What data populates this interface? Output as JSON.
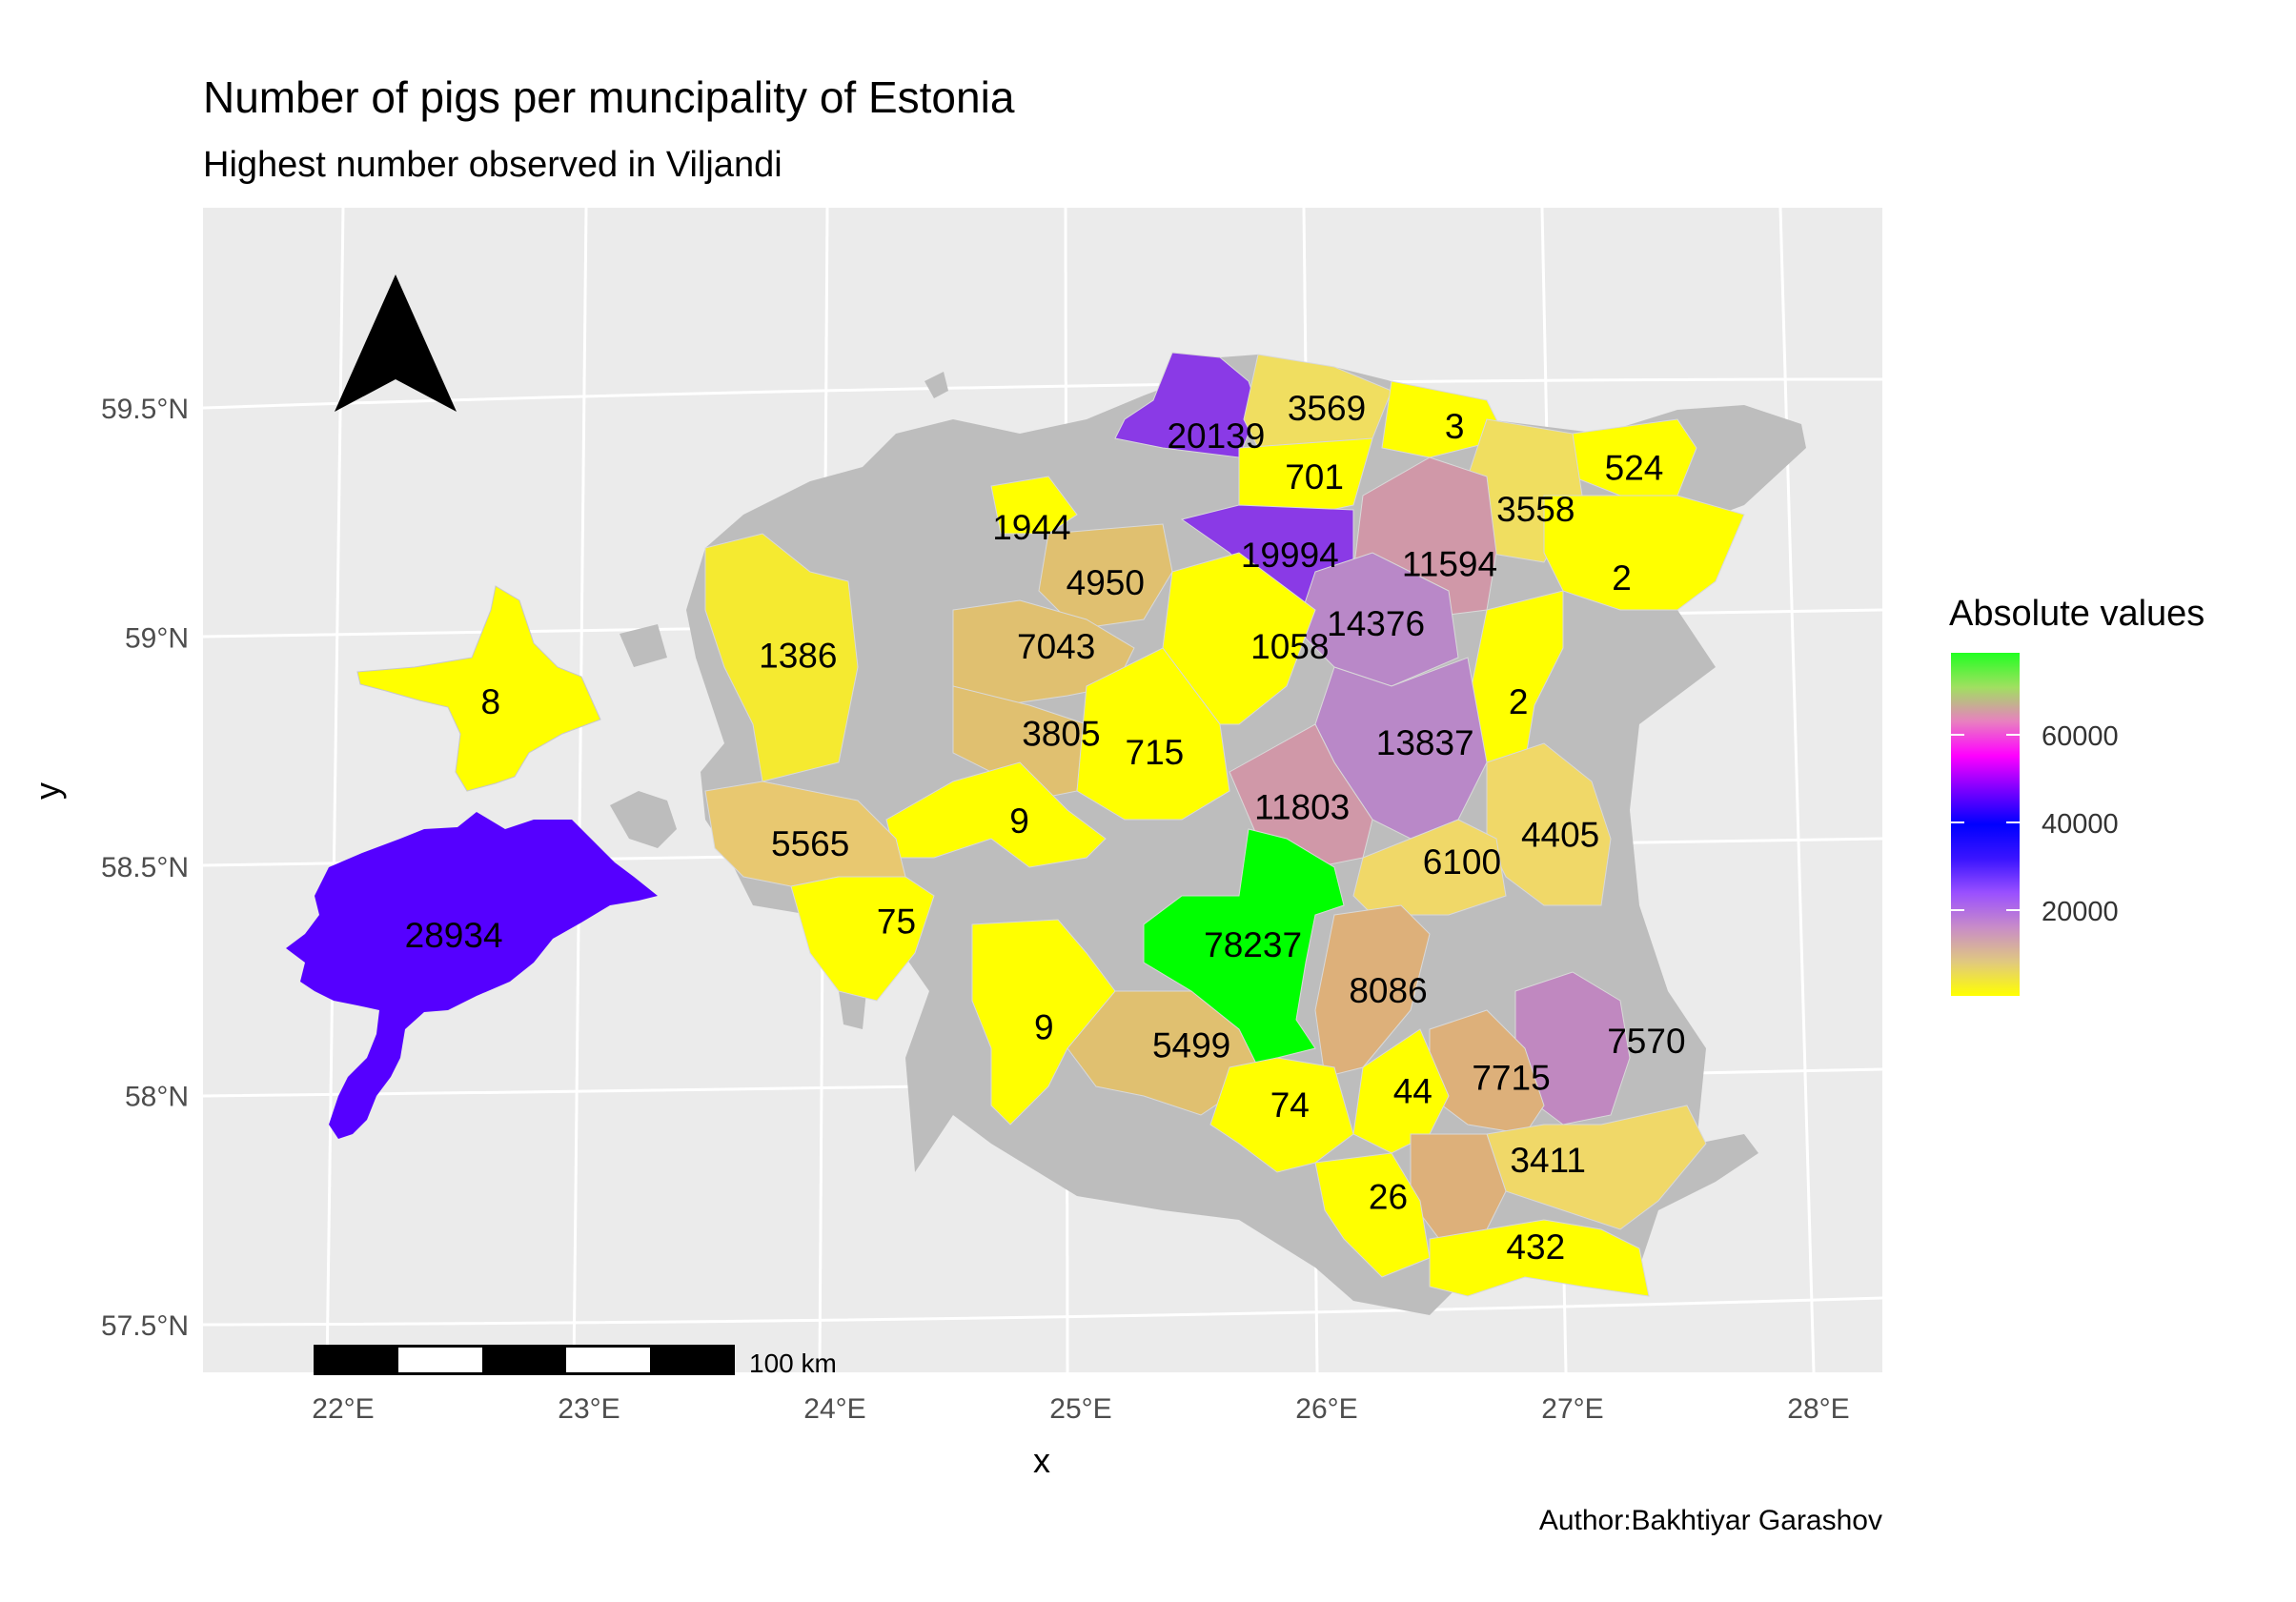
{
  "title": "Number of pigs per muncipality of Estonia",
  "subtitle": "Highest number observed in Viljandi",
  "caption": "Author:Bakhtiyar Garashov",
  "x_axis": {
    "title": "x",
    "ticks": [
      "22°E",
      "23°E",
      "24°E",
      "25°E",
      "26°E",
      "27°E",
      "28°E"
    ]
  },
  "y_axis": {
    "title": "y",
    "ticks": [
      "59.5°N",
      "59°N",
      "58.5°N",
      "58°N",
      "57.5°N"
    ]
  },
  "legend": {
    "title": "Absolute values",
    "ticks": [
      "60000",
      "40000",
      "20000"
    ],
    "gradient": [
      "#ffff00",
      "#e0c880",
      "#c88cc8",
      "#9a50ff",
      "#3a14ff",
      "#0000ff",
      "#7a00ff",
      "#ff00ff",
      "#e880c0",
      "#a0e060",
      "#22ff22"
    ]
  },
  "scale_bar": {
    "label": "100 km"
  },
  "north_arrow": "north-arrow-icon",
  "colors": {
    "panel_bg": "#ebebeb",
    "grid": "#ffffff",
    "na_fill": "#bdbdbd",
    "yellow": "#ffff00",
    "green": "#00ff00",
    "saaremaa": "#5500ff",
    "purple": "#9244e0"
  },
  "chart_data": {
    "type": "choropleth",
    "fill_variable": "Absolute values",
    "labels": [
      {
        "value": "20139",
        "lon": 25.55,
        "lat": 59.44
      },
      {
        "value": "3569",
        "lon": 26.0,
        "lat": 59.5
      },
      {
        "value": "3",
        "lon": 26.52,
        "lat": 59.46
      },
      {
        "value": "524",
        "lon": 27.25,
        "lat": 59.37
      },
      {
        "value": "701",
        "lon": 25.95,
        "lat": 59.35
      },
      {
        "value": "3558",
        "lon": 26.85,
        "lat": 59.28
      },
      {
        "value": "1944",
        "lon": 24.8,
        "lat": 59.24
      },
      {
        "value": "19994",
        "lon": 25.85,
        "lat": 59.18
      },
      {
        "value": "11594",
        "lon": 26.5,
        "lat": 59.16
      },
      {
        "value": "2",
        "lon": 27.2,
        "lat": 59.13
      },
      {
        "value": "4950",
        "lon": 25.1,
        "lat": 59.12
      },
      {
        "value": "14376",
        "lon": 26.2,
        "lat": 59.03
      },
      {
        "value": "1386",
        "lon": 23.85,
        "lat": 58.96
      },
      {
        "value": "8",
        "lon": 22.6,
        "lat": 58.86
      },
      {
        "value": "7043",
        "lon": 24.9,
        "lat": 58.98
      },
      {
        "value": "1058",
        "lon": 25.85,
        "lat": 58.98
      },
      {
        "value": "2",
        "lon": 26.78,
        "lat": 58.86
      },
      {
        "value": "3805",
        "lon": 24.92,
        "lat": 58.79
      },
      {
        "value": "715",
        "lon": 25.3,
        "lat": 58.75
      },
      {
        "value": "13837",
        "lon": 26.4,
        "lat": 58.77
      },
      {
        "value": "11803",
        "lon": 25.9,
        "lat": 58.63
      },
      {
        "value": "9",
        "lon": 24.75,
        "lat": 58.6
      },
      {
        "value": "5565",
        "lon": 23.9,
        "lat": 58.55
      },
      {
        "value": "4405",
        "lon": 26.95,
        "lat": 58.57
      },
      {
        "value": "6100",
        "lon": 26.55,
        "lat": 58.51
      },
      {
        "value": "28934",
        "lon": 22.45,
        "lat": 58.35
      },
      {
        "value": "75",
        "lon": 24.25,
        "lat": 58.38
      },
      {
        "value": "78237",
        "lon": 25.7,
        "lat": 58.33
      },
      {
        "value": "8086",
        "lon": 26.25,
        "lat": 58.23
      },
      {
        "value": "9",
        "lon": 24.85,
        "lat": 58.15
      },
      {
        "value": "5499",
        "lon": 25.45,
        "lat": 58.11
      },
      {
        "value": "7570",
        "lon": 27.3,
        "lat": 58.12
      },
      {
        "value": "7715",
        "lon": 26.75,
        "lat": 58.04
      },
      {
        "value": "44",
        "lon": 26.35,
        "lat": 58.01
      },
      {
        "value": "74",
        "lon": 25.85,
        "lat": 57.98
      },
      {
        "value": "3411",
        "lon": 26.9,
        "lat": 57.86
      },
      {
        "value": "26",
        "lon": 26.25,
        "lat": 57.78
      },
      {
        "value": "432",
        "lon": 26.85,
        "lat": 57.67
      }
    ]
  }
}
